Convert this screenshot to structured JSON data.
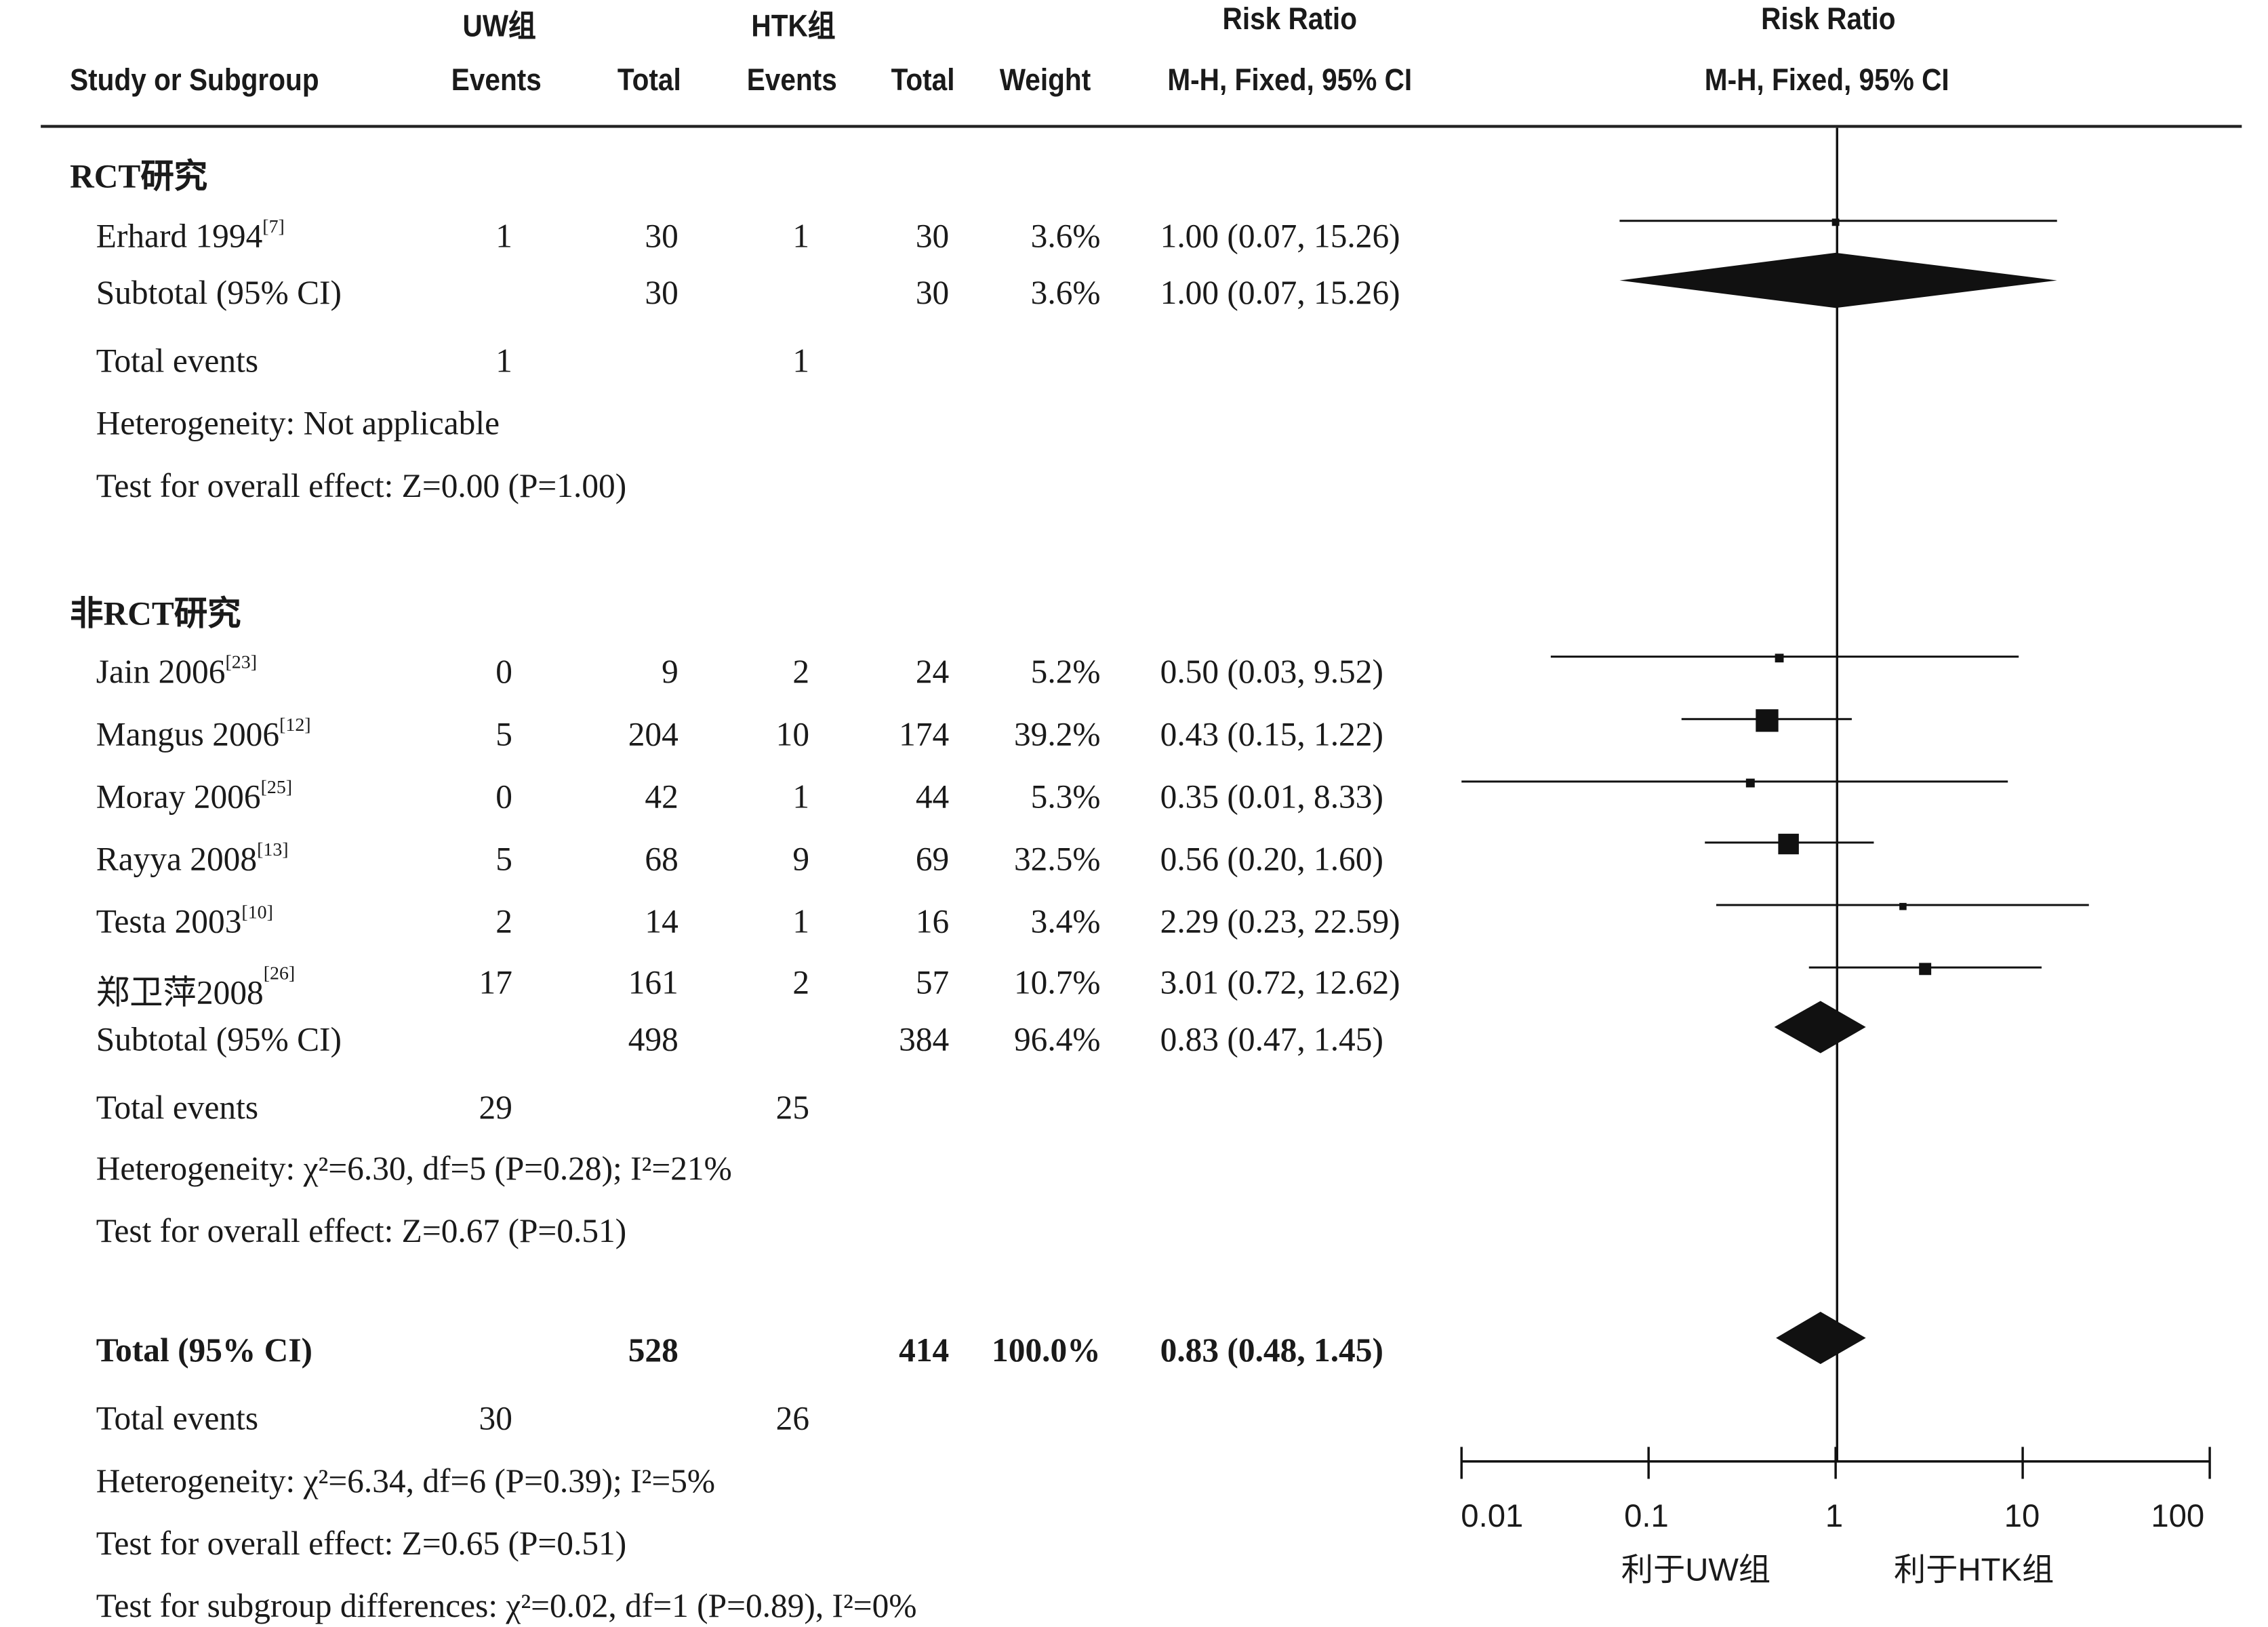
{
  "headers": {
    "group1": "UW组",
    "group2": "HTK组",
    "study": "Study or Subgroup",
    "events1": "Events",
    "total1": "Total",
    "events2": "Events",
    "total2": "Total",
    "weight": "Weight",
    "rr_title": "Risk Ratio",
    "rr_method": "M-H, Fixed, 95% CI",
    "plot_title": "Risk Ratio",
    "plot_method": "M-H, Fixed, 95% CI"
  },
  "sections": [
    {
      "title": "RCT研究",
      "studies": [
        {
          "name": "Erhard 1994",
          "ref": "[7]",
          "e1": "1",
          "t1": "30",
          "e2": "1",
          "t2": "30",
          "weight": "3.6%",
          "ci": "1.00 (0.07, 15.26)"
        }
      ],
      "subtotal": {
        "label": "Subtotal (95% CI)",
        "t1": "30",
        "t2": "30",
        "weight": "3.6%",
        "ci": "1.00 (0.07, 15.26)"
      },
      "total_events": {
        "label": "Total events",
        "e1": "1",
        "e2": "1"
      },
      "heterogeneity": "Heterogeneity: Not applicable",
      "overall": "Test for overall effect: Z=0.00 (P=1.00)"
    },
    {
      "title": "非RCT研究",
      "studies": [
        {
          "name": "Jain 2006",
          "ref": "[23]",
          "e1": "0",
          "t1": "9",
          "e2": "2",
          "t2": "24",
          "weight": "5.2%",
          "ci": "0.50 (0.03, 9.52)"
        },
        {
          "name": "Mangus 2006",
          "ref": "[12]",
          "e1": "5",
          "t1": "204",
          "e2": "10",
          "t2": "174",
          "weight": "39.2%",
          "ci": "0.43 (0.15, 1.22)"
        },
        {
          "name": "Moray 2006",
          "ref": "[25]",
          "e1": "0",
          "t1": "42",
          "e2": "1",
          "t2": "44",
          "weight": "5.3%",
          "ci": "0.35 (0.01, 8.33)"
        },
        {
          "name": "Rayya 2008",
          "ref": "[13]",
          "e1": "5",
          "t1": "68",
          "e2": "9",
          "t2": "69",
          "weight": "32.5%",
          "ci": "0.56 (0.20, 1.60)"
        },
        {
          "name": "Testa 2003",
          "ref": "[10]",
          "e1": "2",
          "t1": "14",
          "e2": "1",
          "t2": "16",
          "weight": "3.4%",
          "ci": "2.29 (0.23, 22.59)"
        },
        {
          "name": "郑卫萍2008",
          "ref": "[26]",
          "e1": "17",
          "t1": "161",
          "e2": "2",
          "t2": "57",
          "weight": "10.7%",
          "ci": "3.01 (0.72, 12.62)"
        }
      ],
      "subtotal": {
        "label": "Subtotal (95% CI)",
        "t1": "498",
        "t2": "384",
        "weight": "96.4%",
        "ci": "0.83 (0.47, 1.45)"
      },
      "total_events": {
        "label": "Total events",
        "e1": "29",
        "e2": "25"
      },
      "heterogeneity": "Heterogeneity: χ²=6.30, df=5 (P=0.28); I²=21%",
      "overall": "Test for overall effect: Z=0.67 (P=0.51)"
    }
  ],
  "total": {
    "label": "Total (95% CI)",
    "t1": "528",
    "t2": "414",
    "weight": "100.0%",
    "ci": "0.83 (0.48, 1.45)",
    "events_label": "Total events",
    "e1": "30",
    "e2": "26",
    "heterogeneity": "Heterogeneity: χ²=6.34, df=6 (P=0.39); I²=5%",
    "overall": "Test for overall effect: Z=0.65 (P=0.51)",
    "subgroup": "Test for subgroup differences: χ²=0.02, df=1 (P=0.89), I²=0%"
  },
  "axis": {
    "ticks": [
      "0.01",
      "0.1",
      "1",
      "10",
      "100"
    ],
    "favours_left": "利于UW组",
    "favours_right": "利于HTK组"
  },
  "chart_data": {
    "type": "forest",
    "scale": "log10",
    "xlim": [
      0.01,
      100
    ],
    "null_value": 1,
    "studies": [
      {
        "name": "Erhard 1994",
        "rr": 1.0,
        "lo": 0.07,
        "hi": 15.26,
        "weight": 3.6
      },
      {
        "name": "Jain 2006",
        "rr": 0.5,
        "lo": 0.03,
        "hi": 9.52,
        "weight": 5.2
      },
      {
        "name": "Mangus 2006",
        "rr": 0.43,
        "lo": 0.15,
        "hi": 1.22,
        "weight": 39.2
      },
      {
        "name": "Moray 2006",
        "rr": 0.35,
        "lo": 0.01,
        "hi": 8.33,
        "weight": 5.3
      },
      {
        "name": "Rayya 2008",
        "rr": 0.56,
        "lo": 0.2,
        "hi": 1.6,
        "weight": 32.5
      },
      {
        "name": "Testa 2003",
        "rr": 2.29,
        "lo": 0.23,
        "hi": 22.59,
        "weight": 3.4
      },
      {
        "name": "郑卫萍2008",
        "rr": 3.01,
        "lo": 0.72,
        "hi": 12.62,
        "weight": 10.7
      }
    ],
    "pooled": [
      {
        "name": "Subtotal RCT研究",
        "rr": 1.0,
        "lo": 0.07,
        "hi": 15.26
      },
      {
        "name": "Subtotal 非RCT研究",
        "rr": 0.83,
        "lo": 0.47,
        "hi": 1.45
      },
      {
        "name": "Total",
        "rr": 0.83,
        "lo": 0.48,
        "hi": 1.45
      }
    ]
  }
}
